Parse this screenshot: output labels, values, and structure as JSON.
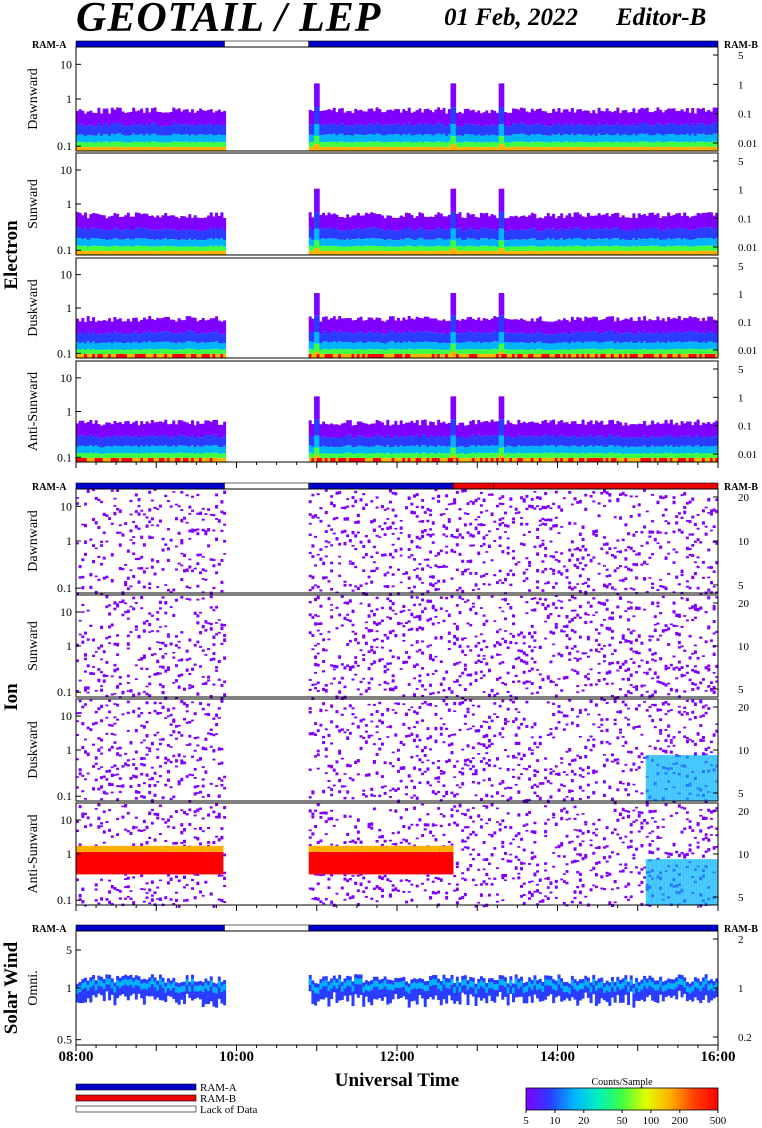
{
  "header": {
    "title": "GEOTAIL / LEP",
    "date": "01 Feb, 2022",
    "editor": "Editor-B"
  },
  "colors": {
    "ram_a": "#0000cc",
    "ram_b": "#ee0000",
    "lack_of_data": "#ffffff",
    "spectrogram_scale": [
      "#8000ff",
      "#2a3cff",
      "#00b4ff",
      "#00f0c0",
      "#40ff40",
      "#e0ff00",
      "#ffb000",
      "#ff4000",
      "#ff0000"
    ]
  },
  "chart_data": {
    "type": "heatmap",
    "xlabel": "Universal Time",
    "x_ticks": [
      "08:00",
      "10:00",
      "12:00",
      "14:00",
      "16:00"
    ],
    "x_range_hours": [
      8,
      16
    ],
    "gap_hours": [
      9.85,
      10.9
    ],
    "ram_label_left": "RAM-A",
    "ram_label_right": "RAM-B",
    "groups": [
      {
        "name": "Electron",
        "status_bar": [
          {
            "from": 8,
            "to": 9.85,
            "mode": "ram_a"
          },
          {
            "from": 9.85,
            "to": 10.9,
            "mode": "lack"
          },
          {
            "from": 10.9,
            "to": 16,
            "mode": "ram_a"
          }
        ],
        "panels": [
          {
            "label": "Dawnward",
            "left_ticks": [
              "10",
              "1",
              "0.1"
            ],
            "right_ticks": [
              "5",
              "1",
              "0.1",
              "0.01"
            ]
          },
          {
            "label": "Sunward",
            "left_ticks": [
              "10",
              "1",
              "0.1"
            ],
            "right_ticks": [
              "5",
              "1",
              "0.1",
              "0.01"
            ]
          },
          {
            "label": "Duskward",
            "left_ticks": [
              "10",
              "1",
              "0.1"
            ],
            "right_ticks": [
              "5",
              "1",
              "0.1",
              "0.01"
            ]
          },
          {
            "label": "Anti-Sunward",
            "left_ticks": [
              "10",
              "1",
              "0.1"
            ],
            "right_ticks": [
              "5",
              "1",
              "0.1",
              "0.01"
            ]
          }
        ]
      },
      {
        "name": "Ion",
        "status_bar": [
          {
            "from": 8,
            "to": 9.85,
            "mode": "ram_a"
          },
          {
            "from": 9.85,
            "to": 10.9,
            "mode": "lack"
          },
          {
            "from": 10.9,
            "to": 12.7,
            "mode": "ram_a"
          },
          {
            "from": 12.7,
            "to": 13.2,
            "mode": "ram_b"
          },
          {
            "from": 13.2,
            "to": 16,
            "mode": "ram_b"
          }
        ],
        "panels": [
          {
            "label": "Dawnward",
            "left_ticks": [
              "10",
              "1",
              "0.1"
            ],
            "right_ticks": [
              "20",
              "10",
              "5"
            ]
          },
          {
            "label": "Sunward",
            "left_ticks": [
              "10",
              "1",
              "0.1"
            ],
            "right_ticks": [
              "20",
              "10",
              "5"
            ]
          },
          {
            "label": "Duskward",
            "left_ticks": [
              "10",
              "1",
              "0.1"
            ],
            "right_ticks": [
              "20",
              "10",
              "5"
            ]
          },
          {
            "label": "Anti-Sunward",
            "left_ticks": [
              "10",
              "1",
              "0.1"
            ],
            "right_ticks": [
              "20",
              "10",
              "5"
            ]
          }
        ]
      },
      {
        "name": "Solar Wind",
        "status_bar": [
          {
            "from": 8,
            "to": 9.85,
            "mode": "ram_a"
          },
          {
            "from": 9.85,
            "to": 10.9,
            "mode": "lack"
          },
          {
            "from": 10.9,
            "to": 16,
            "mode": "ram_a"
          }
        ],
        "panels": [
          {
            "label": "Omni.",
            "left_ticks": [
              "5",
              "1",
              "0.5"
            ],
            "right_ticks": [
              "2",
              "1",
              "0.2"
            ]
          }
        ]
      }
    ],
    "legend": [
      {
        "label": "RAM-A",
        "mode": "ram_a"
      },
      {
        "label": "RAM-B",
        "mode": "ram_b"
      },
      {
        "label": "Lack of Data",
        "mode": "lack"
      }
    ],
    "colorbar": {
      "title": "Counts/Sample",
      "ticks": [
        "5",
        "10",
        "20",
        "50",
        "100",
        "200",
        "500"
      ]
    }
  }
}
